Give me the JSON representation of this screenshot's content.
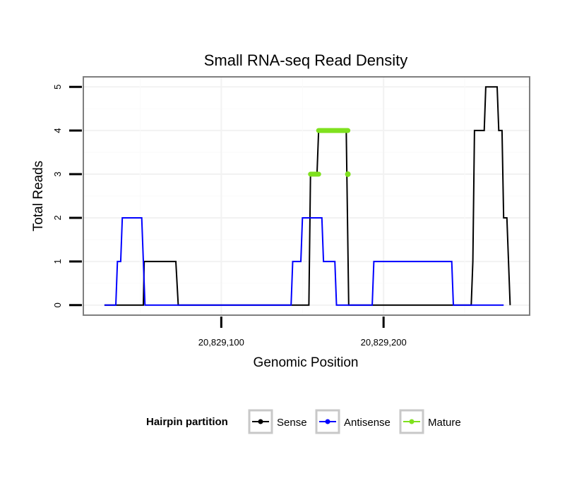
{
  "chart_data": {
    "type": "line",
    "title": "Small RNA-seq Read Density",
    "xlabel": "Genomic Position",
    "ylabel": "Total Reads",
    "xlim": [
      20829015,
      20829290
    ],
    "ylim": [
      -0.23,
      5.23
    ],
    "x_ticks": [
      20829100,
      20829200
    ],
    "x_tick_labels": [
      "20,829,100",
      "20,829,200"
    ],
    "y_ticks": [
      0,
      1,
      2,
      3,
      4,
      5
    ],
    "y_tick_labels": [
      "0",
      "1",
      "2",
      "3",
      "4",
      "5"
    ],
    "grid": true,
    "legend": {
      "title": "Hairpin partition",
      "position": "bottom",
      "entries": [
        {
          "name": "Sense",
          "color": "#000000"
        },
        {
          "name": "Antisense",
          "color": "#0000ff"
        },
        {
          "name": "Mature",
          "color": "#7fe11e"
        }
      ]
    },
    "series": [
      {
        "name": "Sense",
        "color": "#000000",
        "x": [
          20829028,
          20829052,
          20829052.5,
          20829054,
          20829072,
          20829073.5,
          20829154,
          20829155,
          20829159,
          20829160,
          20829177,
          20829178.5,
          20829254,
          20829255,
          20829256,
          20829262,
          20829263,
          20829270,
          20829271,
          20829273,
          20829274,
          20829276,
          20829277,
          20829278
        ],
        "y": [
          0,
          0,
          1,
          1,
          1,
          0,
          0,
          3,
          3,
          4,
          4,
          0,
          0,
          1,
          4,
          4,
          5,
          5,
          4,
          4,
          2,
          2,
          1,
          0
        ]
      },
      {
        "name": "Antisense",
        "color": "#0000ff",
        "x": [
          20829028,
          20829035,
          20829036,
          20829038,
          20829039,
          20829051,
          20829052,
          20829053,
          20829071,
          20829073,
          20829143,
          20829144,
          20829149,
          20829150,
          20829162,
          20829163,
          20829170,
          20829171,
          20829193,
          20829194,
          20829242,
          20829243,
          20829274
        ],
        "y": [
          0,
          0,
          1,
          1,
          2,
          2,
          1,
          0,
          0,
          0,
          0,
          1,
          1,
          2,
          2,
          1,
          1,
          0,
          0,
          1,
          1,
          0,
          0
        ]
      },
      {
        "name": "Mature",
        "color": "#7fe11e",
        "segments": [
          {
            "x": [
              20829155,
              20829160
            ],
            "y": [
              3,
              3
            ]
          },
          {
            "x": [
              20829160,
              20829178
            ],
            "y": [
              4,
              4
            ]
          }
        ],
        "points": [
          {
            "x": 20829178,
            "y": 3
          }
        ]
      }
    ]
  }
}
